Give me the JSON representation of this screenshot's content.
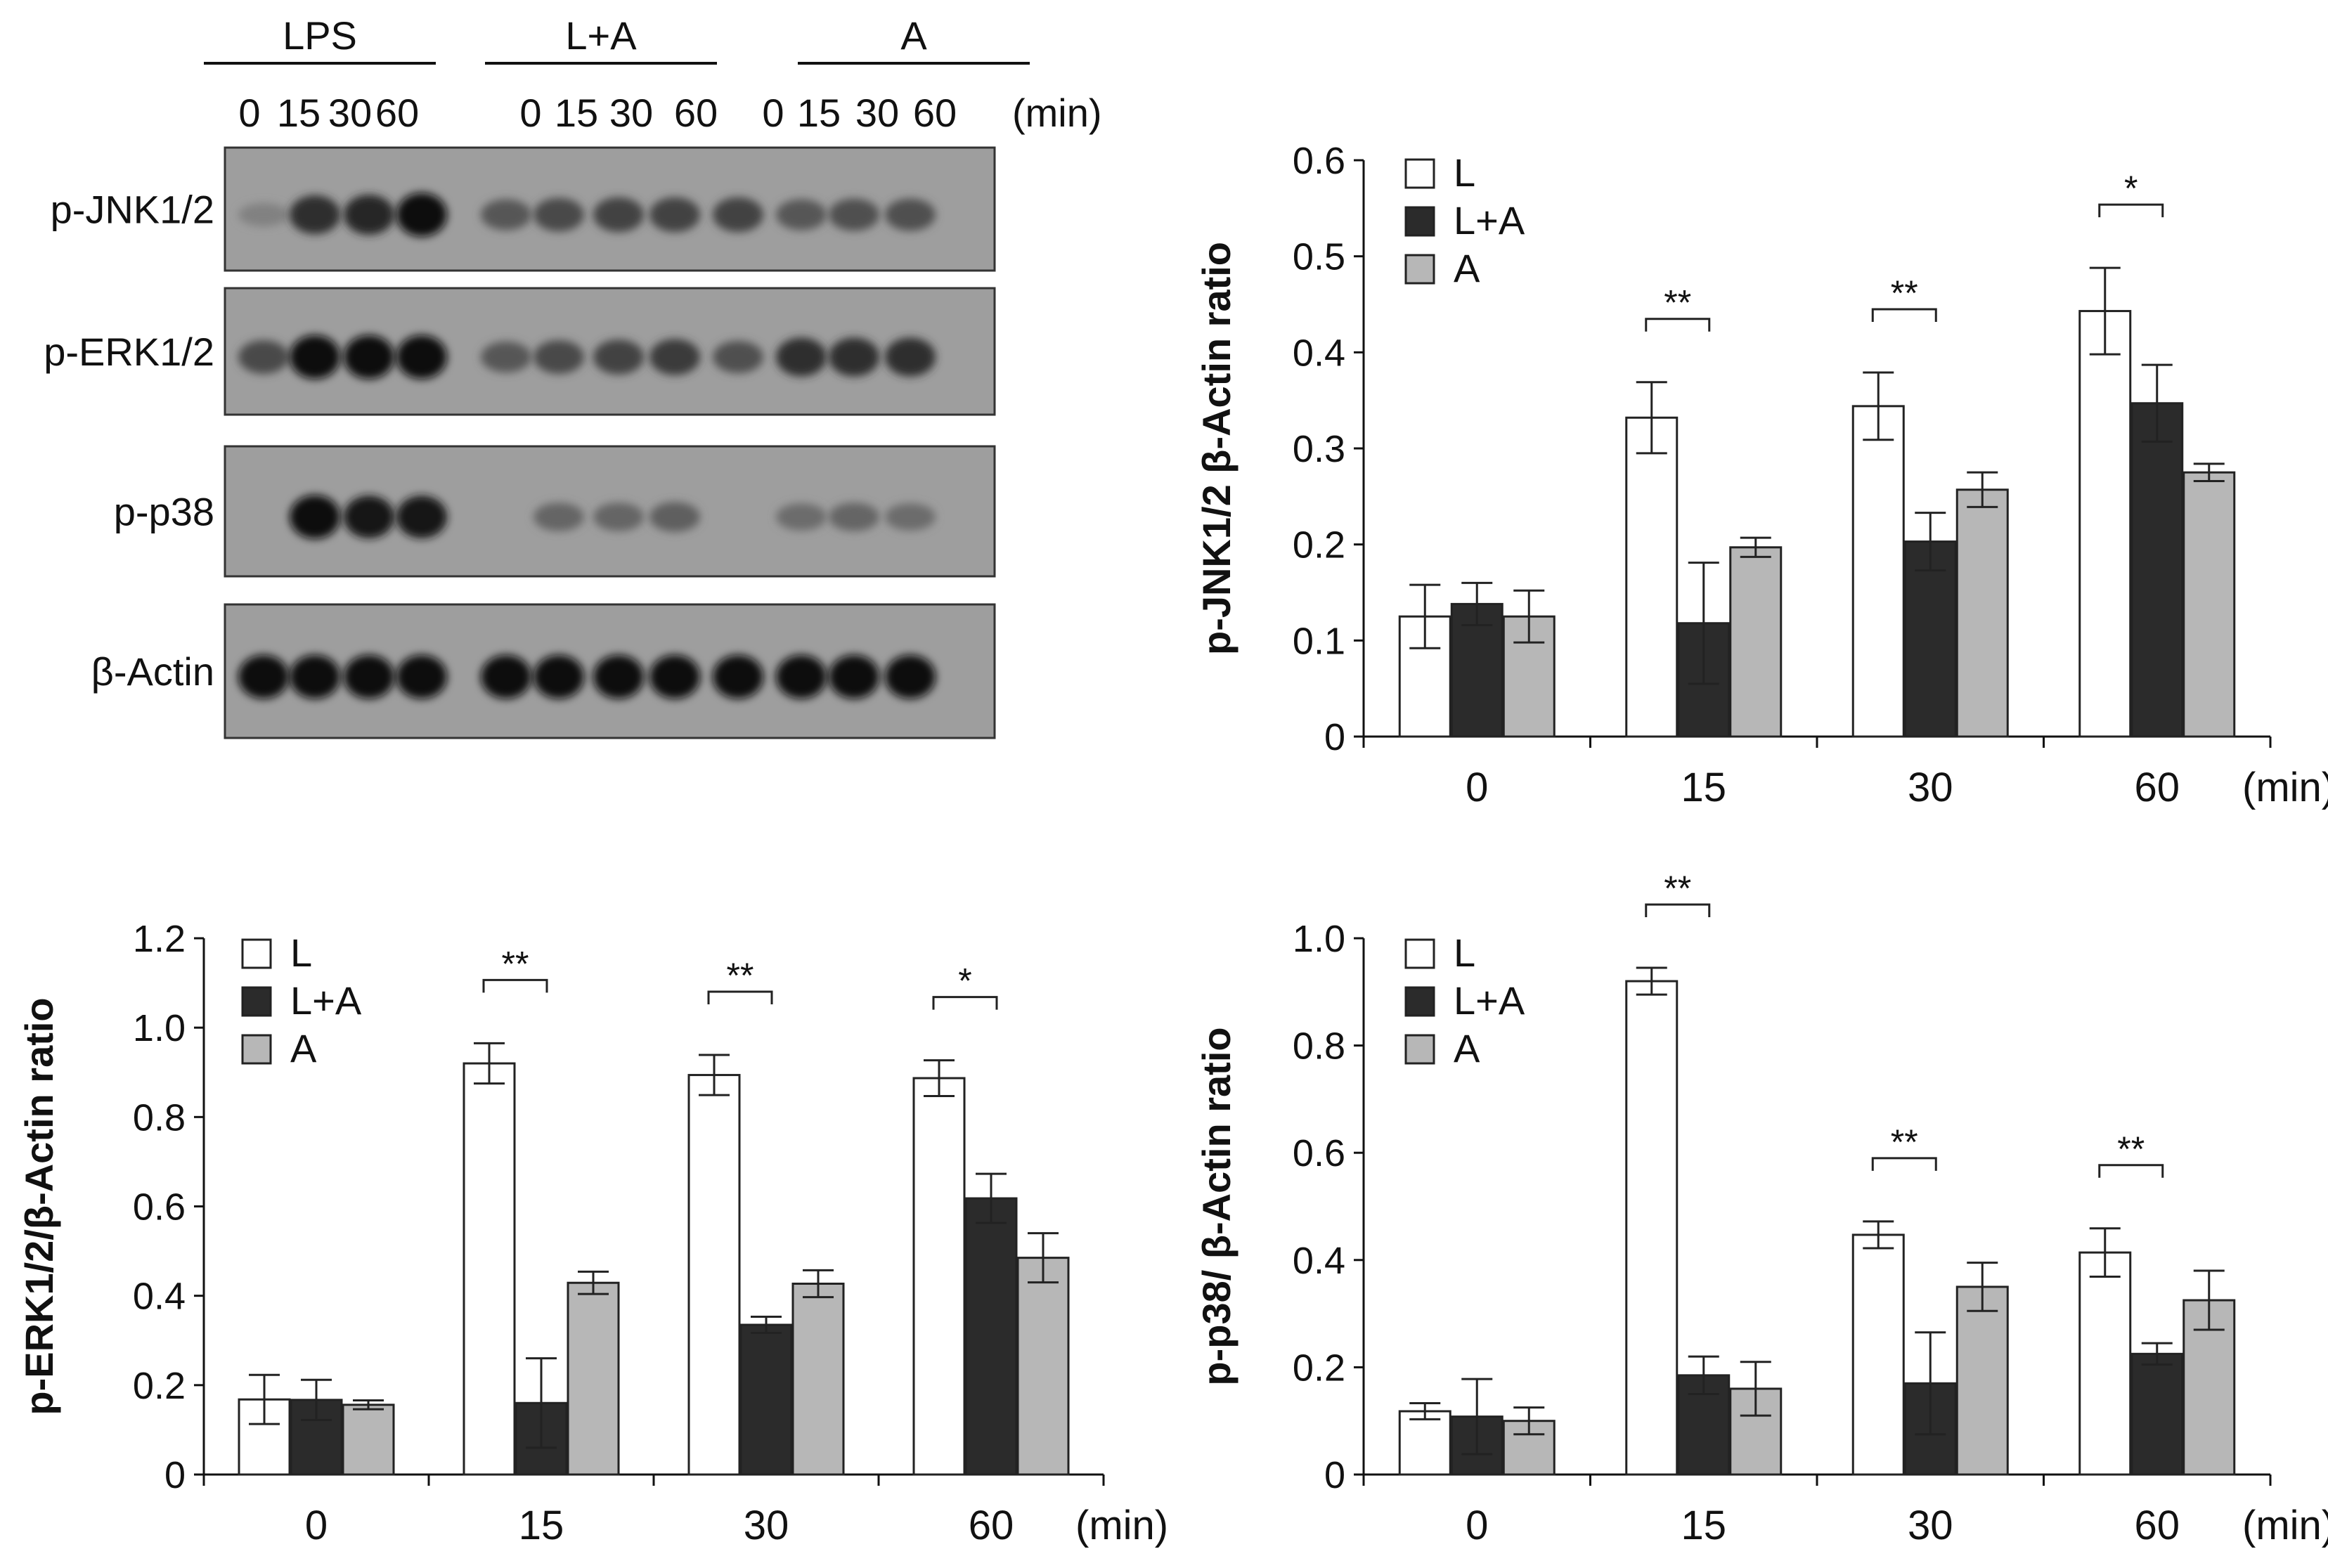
{
  "blot": {
    "groups": [
      "LPS",
      "L+A",
      "A"
    ],
    "lane_labels": [
      "0",
      "15",
      "30",
      "60",
      "0",
      "15",
      "30",
      "60",
      "0",
      "15",
      "30",
      "60"
    ],
    "unit": "(min)",
    "rows": [
      {
        "label": "p-JNK1/2",
        "intensity": [
          0.15,
          0.75,
          0.8,
          0.95,
          0.45,
          0.55,
          0.6,
          0.6,
          0.6,
          0.45,
          0.5,
          0.5
        ]
      },
      {
        "label": "p-ERK1/2",
        "intensity": [
          0.55,
          0.95,
          0.95,
          0.95,
          0.45,
          0.55,
          0.6,
          0.65,
          0.5,
          0.75,
          0.75,
          0.75
        ]
      },
      {
        "label": "p-p38",
        "intensity": [
          0.0,
          0.95,
          0.9,
          0.9,
          0.0,
          0.35,
          0.35,
          0.4,
          0.0,
          0.3,
          0.35,
          0.3
        ]
      },
      {
        "label": "β-Actin",
        "intensity": [
          0.95,
          0.95,
          0.95,
          0.95,
          0.95,
          0.95,
          0.95,
          0.95,
          0.95,
          0.95,
          0.95,
          0.95
        ]
      }
    ]
  },
  "colors": {
    "L": "#ffffff",
    "L+A": "#2b2b2b",
    "A": "#b7b7b7"
  },
  "chart_data": [
    {
      "type": "bar",
      "ylabel": "p-JNK1/2 β-Actin ratio",
      "categories": [
        "0",
        "15",
        "30",
        "60"
      ],
      "x_unit": "(min)",
      "ylim": [
        0,
        0.6
      ],
      "yticks": [
        "0",
        "0.1",
        "0.2",
        "0.3",
        "0.4",
        "0.5",
        "0.6"
      ],
      "series": [
        {
          "name": "L",
          "values": [
            0.125,
            0.332,
            0.344,
            0.443
          ],
          "errors": [
            0.033,
            0.037,
            0.035,
            0.045
          ]
        },
        {
          "name": "L+A",
          "values": [
            0.138,
            0.118,
            0.203,
            0.347
          ],
          "errors": [
            0.022,
            0.063,
            0.03,
            0.04
          ]
        },
        {
          "name": "A",
          "values": [
            0.125,
            0.197,
            0.257,
            0.275
          ],
          "errors": [
            0.027,
            0.01,
            0.018,
            0.009
          ]
        }
      ],
      "significance": [
        {
          "category": "15",
          "label": "**"
        },
        {
          "category": "30",
          "label": "**"
        },
        {
          "category": "60",
          "label": "*"
        }
      ],
      "legend": "top-left"
    },
    {
      "type": "bar",
      "ylabel": "p-ERK1/2/β-Actin ratio",
      "categories": [
        "0",
        "15",
        "30",
        "60"
      ],
      "x_unit": "(min)",
      "ylim": [
        0,
        1.2
      ],
      "yticks": [
        "0",
        "0.2",
        "0.4",
        "0.6",
        "0.8",
        "1.0",
        "1.2"
      ],
      "series": [
        {
          "name": "L",
          "values": [
            0.168,
            0.92,
            0.894,
            0.887
          ],
          "errors": [
            0.055,
            0.045,
            0.045,
            0.04
          ]
        },
        {
          "name": "L+A",
          "values": [
            0.167,
            0.16,
            0.335,
            0.618
          ],
          "errors": [
            0.045,
            0.1,
            0.018,
            0.055
          ]
        },
        {
          "name": "A",
          "values": [
            0.156,
            0.429,
            0.427,
            0.485
          ],
          "errors": [
            0.01,
            0.025,
            0.03,
            0.055
          ]
        }
      ],
      "significance": [
        {
          "category": "15",
          "label": "**"
        },
        {
          "category": "30",
          "label": "**"
        },
        {
          "category": "60",
          "label": "*"
        }
      ],
      "legend": "top-left"
    },
    {
      "type": "bar",
      "ylabel": "p-p38/ β-Actin ratio",
      "categories": [
        "0",
        "15",
        "30",
        "60"
      ],
      "x_unit": "(min)",
      "ylim": [
        0,
        1.0
      ],
      "yticks": [
        "0",
        "0.2",
        "0.4",
        "0.6",
        "0.8",
        "1.0"
      ],
      "series": [
        {
          "name": "L",
          "values": [
            0.118,
            0.92,
            0.447,
            0.414
          ],
          "errors": [
            0.015,
            0.025,
            0.025,
            0.045
          ]
        },
        {
          "name": "L+A",
          "values": [
            0.108,
            0.185,
            0.17,
            0.225
          ],
          "errors": [
            0.07,
            0.035,
            0.095,
            0.02
          ]
        },
        {
          "name": "A",
          "values": [
            0.1,
            0.16,
            0.35,
            0.325
          ],
          "errors": [
            0.025,
            0.05,
            0.045,
            0.055
          ]
        }
      ],
      "significance": [
        {
          "category": "15",
          "label": "**"
        },
        {
          "category": "30",
          "label": "**"
        },
        {
          "category": "60",
          "label": "**"
        }
      ],
      "legend": "top-left"
    }
  ]
}
